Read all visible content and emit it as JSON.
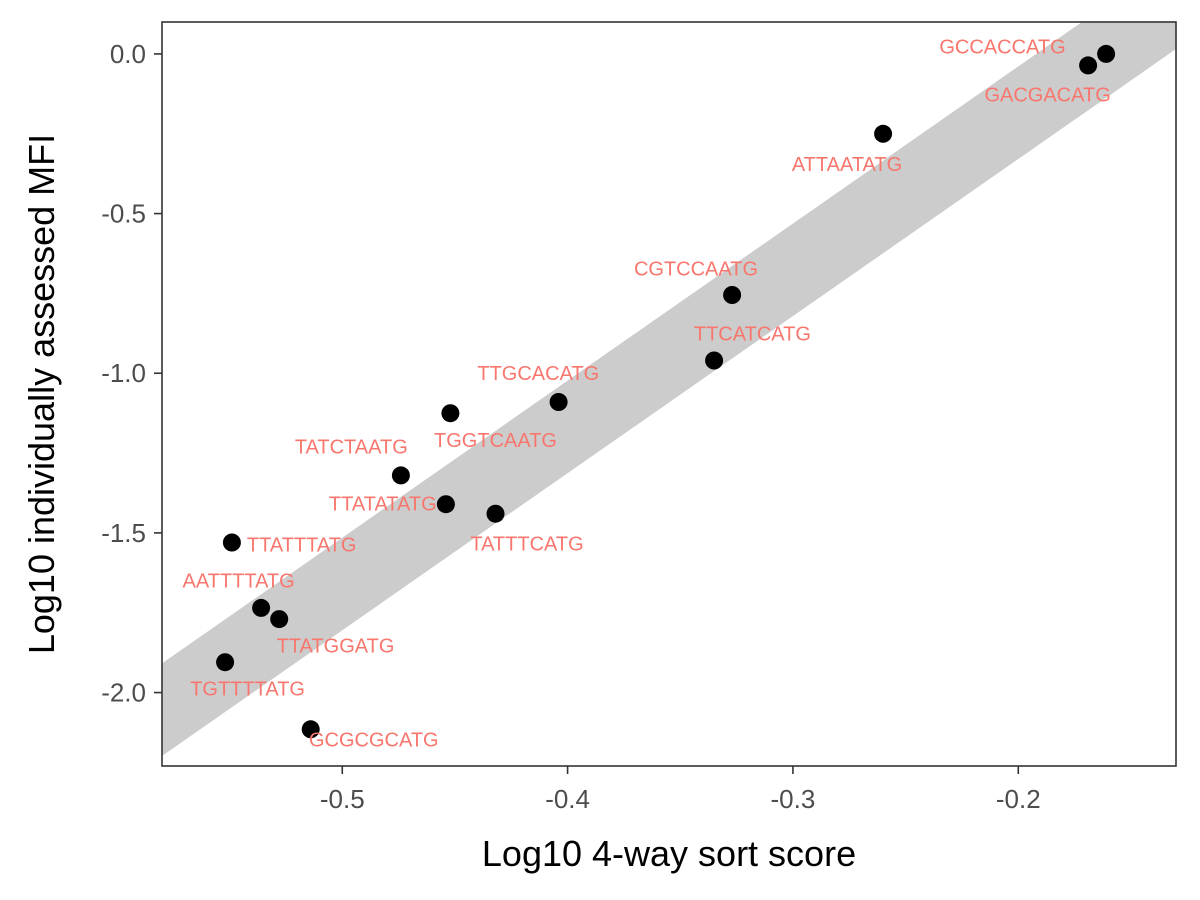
{
  "chart_data": {
    "type": "scatter",
    "xlabel": "Log10 4-way sort score",
    "ylabel": "Log10 individually assessed MFI",
    "xlim": [
      -0.58,
      -0.13
    ],
    "ylim": [
      -2.23,
      0.1
    ],
    "x_ticks": [
      "-0.5",
      "-0.4",
      "-0.3",
      "-0.2"
    ],
    "y_ticks": [
      "0.0",
      "-0.5",
      "-1.0",
      "-1.5",
      "-2.0"
    ],
    "grid": false,
    "band": {
      "slope": 4.92,
      "intercept": 0.8,
      "half_width": 0.145,
      "color": "#cccccc"
    },
    "point_color": "#000000",
    "label_color": "#f8766d",
    "points": [
      {
        "x": -0.161,
        "y": 0.0,
        "label": "GCCACCATG",
        "label_x": -0.207,
        "label_y": 0.024
      },
      {
        "x": -0.169,
        "y": -0.036,
        "label": "GACGACATG",
        "label_x": -0.187,
        "label_y": -0.127
      },
      {
        "x": -0.26,
        "y": -0.25,
        "label": "ATTAATATG",
        "label_x": -0.276,
        "label_y": -0.344
      },
      {
        "x": -0.327,
        "y": -0.755,
        "label": "CGTCCAATG",
        "label_x": -0.343,
        "label_y": -0.672
      },
      {
        "x": -0.335,
        "y": -0.96,
        "label": "TTCATCATG",
        "label_x": -0.318,
        "label_y": -0.875
      },
      {
        "x": -0.404,
        "y": -1.09,
        "label": "TTGCACATG",
        "label_x": -0.413,
        "label_y": -1.0
      },
      {
        "x": -0.452,
        "y": -1.125,
        "label": "TGGTCAATG",
        "label_x": -0.432,
        "label_y": -1.209
      },
      {
        "x": -0.474,
        "y": -1.32,
        "label": "TATCTAATG",
        "label_x": -0.496,
        "label_y": -1.23
      },
      {
        "x": -0.454,
        "y": -1.41,
        "label": "TTATATATG",
        "label_x": -0.482,
        "label_y": -1.408
      },
      {
        "x": -0.432,
        "y": -1.44,
        "label": "TATTTCATG",
        "label_x": -0.418,
        "label_y": -1.533
      },
      {
        "x": -0.549,
        "y": -1.53,
        "label": "TTATTTATG",
        "label_x": -0.518,
        "label_y": -1.536
      },
      {
        "x": -0.536,
        "y": -1.735,
        "label": "AATTTTATG",
        "label_x": -0.546,
        "label_y": -1.649
      },
      {
        "x": -0.528,
        "y": -1.77,
        "label": "TTATGGATG",
        "label_x": -0.503,
        "label_y": -1.853
      },
      {
        "x": -0.552,
        "y": -1.905,
        "label": "TGTTTTATG",
        "label_x": -0.542,
        "label_y": -1.988
      },
      {
        "x": -0.514,
        "y": -2.115,
        "label": "GCGCGCATG",
        "label_x": -0.486,
        "label_y": -2.147
      }
    ]
  }
}
